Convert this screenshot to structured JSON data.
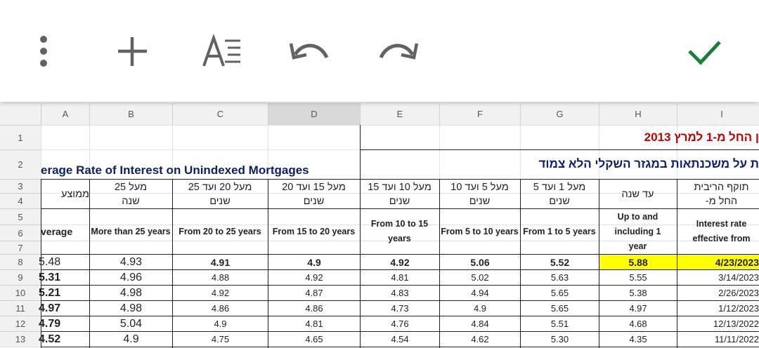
{
  "columns": [
    "A",
    "B",
    "C",
    "D",
    "E",
    "F",
    "G",
    "H",
    "I"
  ],
  "row_numbers": [
    "1",
    "2",
    "3",
    "4",
    "5",
    "6",
    "7",
    "8",
    "9",
    "10",
    "11",
    "12",
    "13"
  ],
  "title_he": "ן החל מ-1 למרץ 2013",
  "title_en": "erage Rate of Interest on Unindexed Mortgages",
  "subtitle_he": "ת על משכנתאות במגזר השקלי הלא צמוד",
  "headers_he": [
    [
      "ממוצע"
    ],
    [
      "מעל 25",
      "שנה"
    ],
    [
      "מעל 20 ועד 25",
      "שנים"
    ],
    [
      "מעל 15 ועד 20",
      "שנים"
    ],
    [
      "מעל 10 ועד 15",
      "שנים"
    ],
    [
      "מעל 5 ועד 10",
      "שנים"
    ],
    [
      "מעל 1 ועד 5",
      "שנים"
    ],
    [
      "עד שנה"
    ],
    [
      "תוקף הריבית",
      "החל מ-"
    ]
  ],
  "headers_en": [
    "verage",
    "More than 25 years",
    "From 20 to 25 years",
    "From 15 to 20 years",
    "From 10 to 15 years",
    "From 5 to 10 years",
    "From 1 to 5 years",
    "Up to and including 1 year",
    "Interest rate effective from"
  ],
  "rows": [
    [
      "5.48",
      "4.93",
      "4.91",
      "4.9",
      "4.92",
      "5.06",
      "5.52",
      "5.88",
      "4/23/2023"
    ],
    [
      "5.31",
      "4.96",
      "4.88",
      "4.92",
      "4.81",
      "5.02",
      "5.63",
      "5.55",
      "3/14/2023"
    ],
    [
      "5.21",
      "4.98",
      "4.92",
      "4.87",
      "4.83",
      "4.94",
      "5.65",
      "5.38",
      "2/26/2023"
    ],
    [
      "4.97",
      "4.98",
      "4.86",
      "4.86",
      "4.73",
      "4.9",
      "5.65",
      "4.97",
      "1/12/2023"
    ],
    [
      "4.79",
      "5.04",
      "4.9",
      "4.81",
      "4.76",
      "4.84",
      "5.51",
      "4.68",
      "12/13/2022"
    ],
    [
      "4.52",
      "4.9",
      "4.75",
      "4.65",
      "4.54",
      "4.62",
      "5.30",
      "4.35",
      "11/11/2022"
    ]
  ]
}
